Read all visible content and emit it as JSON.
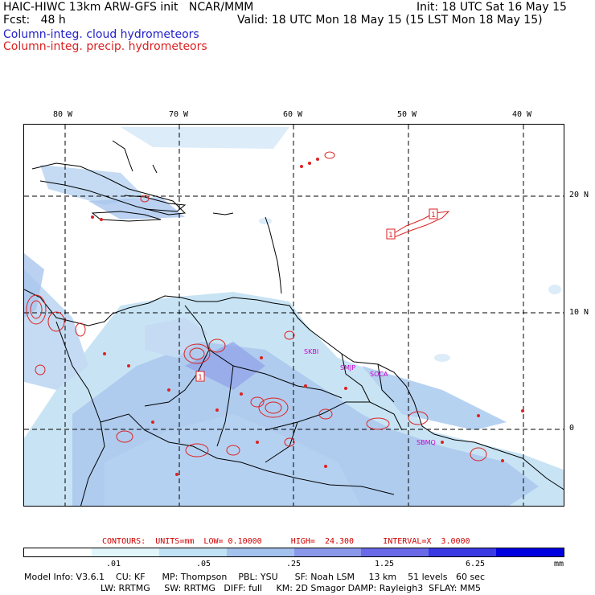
{
  "header": {
    "title": "HAIC-HIWC 13km ARW-GFS init   NCAR/MMM",
    "init": "Init: 18 UTC Sat 16 May 15",
    "fcst": "Fcst:   48 h",
    "valid": "Valid: 18 UTC Mon 18 May 15 (15 LST Mon 18 May 15)",
    "legend_cloud": "Column-integ. cloud hydrometeors",
    "legend_precip": "Column-integ. precip. hydrometeors",
    "colors": {
      "cloud": "#2222cc",
      "precip": "#dd2222"
    }
  },
  "map": {
    "lon_labels": [
      "80 W",
      "70 W",
      "60 W",
      "50 W",
      "40 W"
    ],
    "lat_labels": [
      "20 N",
      "10 N",
      "0"
    ],
    "station_labels": [
      "SKBI",
      "SMJP",
      "SOCA",
      "SBMQ"
    ],
    "contour_marks": [
      "1",
      "1",
      "1"
    ]
  },
  "contours": {
    "text": "CONTOURS:  UNITS=mm  LOW= 0.10000      HIGH=  24.300      INTERVAL=X  3.0000"
  },
  "colorbar": {
    "labels": [
      ".01",
      ".05",
      ".25",
      "1.25",
      "6.25",
      "mm"
    ],
    "colors": [
      "#ffffff",
      "#e0f6fb",
      "#c0e2f4",
      "#a4c2ee",
      "#8a98ea",
      "#6a6ae8",
      "#3a3ae4",
      "#0000e0"
    ]
  },
  "model_info": {
    "line1": "Model Info: V3.6.1    CU: KF      MP: Thompson    PBL: YSU      SF: Noah LSM     13 km    51 levels   60 sec",
    "line2": "LW: RRTMG     SW: RRTMG   DIFF: full     KM: 2D Smagor DAMP: Rayleigh3  SFLAY: MM5"
  }
}
